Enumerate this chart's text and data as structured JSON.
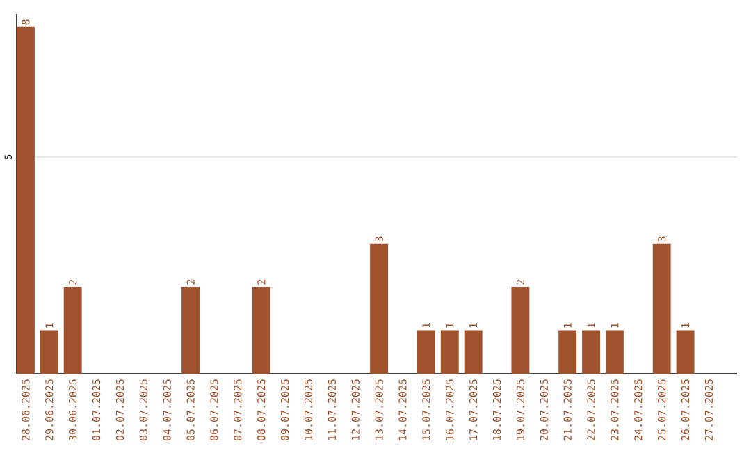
{
  "chart_data": {
    "type": "bar",
    "categories": [
      "28.06.2025",
      "29.06.2025",
      "30.06.2025",
      "01.07.2025",
      "02.07.2025",
      "03.07.2025",
      "04.07.2025",
      "05.07.2025",
      "06.07.2025",
      "07.07.2025",
      "08.07.2025",
      "09.07.2025",
      "10.07.2025",
      "11.07.2025",
      "12.07.2025",
      "13.07.2025",
      "14.07.2025",
      "15.07.2025",
      "16.07.2025",
      "17.07.2025",
      "18.07.2025",
      "19.07.2025",
      "20.07.2025",
      "21.07.2025",
      "22.07.2025",
      "23.07.2025",
      "24.07.2025",
      "25.07.2025",
      "26.07.2025",
      "27.07.2025"
    ],
    "values": [
      8,
      1,
      2,
      0,
      0,
      0,
      0,
      2,
      0,
      0,
      2,
      0,
      0,
      0,
      0,
      3,
      0,
      1,
      1,
      1,
      0,
      2,
      0,
      1,
      1,
      1,
      0,
      3,
      1,
      0
    ],
    "value_labels": [
      "8",
      "1",
      "2",
      null,
      null,
      null,
      null,
      "2",
      null,
      null,
      "2",
      null,
      null,
      null,
      null,
      "3",
      null,
      "1",
      "1",
      "1",
      null,
      "2",
      null,
      "1",
      "1",
      "1",
      null,
      "3",
      "1",
      null
    ],
    "color": "#a0522d",
    "ylim": [
      0,
      8.3
    ],
    "yticks": [
      5
    ],
    "grid": "y"
  }
}
